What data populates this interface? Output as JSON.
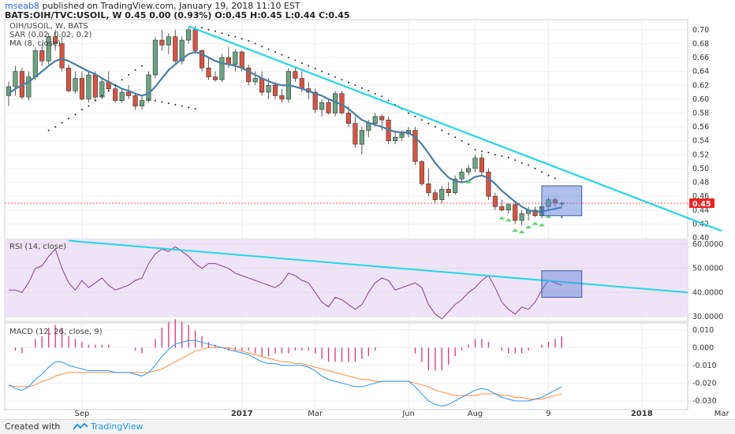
{
  "header": {
    "line1_author": "mseab8",
    "line1_rest": "published on TradingView.com, January 19, 2018 11:10 EST",
    "line2": "BATS:OIH/TVC:USOIL, W  0.45 0.00 (0.93%) O:0.45 H:0.45 L:0.44 C:0.45"
  },
  "panes": {
    "price": {
      "label1": "OIH/USOIL, W, BATS",
      "label2": "SAR (0.02, 0.02, 0.2)",
      "label3": "MA (8, close)"
    },
    "rsi": {
      "label": "RSI (14, close)"
    },
    "macd": {
      "label": "MACD (12, 26, close, 9)"
    }
  },
  "last_price": "0.45",
  "footer": {
    "created_with": "Created with",
    "brand": "TradingView"
  },
  "colors": {
    "up": "#6ba583",
    "down": "#d75442",
    "ma": "#4a7fa3",
    "trendline": "#22d7e6",
    "rsi": "#8e3c8e",
    "rsi_bg": "#efe3f8",
    "macd": "#2196f3",
    "signal": "#ff8a3d",
    "hist": "#e0307a",
    "box": "#5b7fd6",
    "price_label": "#e22"
  },
  "chart_data": [
    {
      "type": "candlestick",
      "title": "OIH/USOIL, W, BATS",
      "ylim": [
        0.4,
        0.71
      ],
      "y_ticks": [
        "0.70",
        "0.68",
        "0.66",
        "0.64",
        "0.62",
        "0.60",
        "0.58",
        "0.56",
        "0.54",
        "0.52",
        "0.50",
        "0.48",
        "0.46",
        "0.44",
        "0.42",
        "0.40"
      ],
      "x_labels": [
        "Sep",
        "2017",
        "Mar",
        "Jun",
        "Aug",
        "9",
        "2018",
        "Mar"
      ],
      "x_label_index": [
        11,
        35,
        46,
        60,
        70,
        81,
        95,
        107
      ],
      "last_price": 0.45,
      "candles": [
        [
          0.605,
          0.625,
          0.59,
          0.618
        ],
        [
          0.618,
          0.648,
          0.605,
          0.64
        ],
        [
          0.64,
          0.645,
          0.6,
          0.603
        ],
        [
          0.603,
          0.64,
          0.598,
          0.632
        ],
        [
          0.632,
          0.675,
          0.628,
          0.67
        ],
        [
          0.67,
          0.68,
          0.648,
          0.655
        ],
        [
          0.655,
          0.695,
          0.65,
          0.69
        ],
        [
          0.69,
          0.7,
          0.67,
          0.68
        ],
        [
          0.68,
          0.69,
          0.64,
          0.645
        ],
        [
          0.645,
          0.65,
          0.61,
          0.612
        ],
        [
          0.612,
          0.64,
          0.608,
          0.63
        ],
        [
          0.63,
          0.64,
          0.598,
          0.6
        ],
        [
          0.6,
          0.64,
          0.595,
          0.635
        ],
        [
          0.635,
          0.64,
          0.598,
          0.603
        ],
        [
          0.603,
          0.63,
          0.6,
          0.625
        ],
        [
          0.625,
          0.64,
          0.61,
          0.615
        ],
        [
          0.615,
          0.62,
          0.595,
          0.598
        ],
        [
          0.598,
          0.615,
          0.595,
          0.61
        ],
        [
          0.61,
          0.62,
          0.6,
          0.605
        ],
        [
          0.605,
          0.608,
          0.585,
          0.59
        ],
        [
          0.59,
          0.605,
          0.585,
          0.598
        ],
        [
          0.598,
          0.64,
          0.595,
          0.635
        ],
        [
          0.635,
          0.69,
          0.63,
          0.685
        ],
        [
          0.685,
          0.7,
          0.67,
          0.678
        ],
        [
          0.678,
          0.695,
          0.665,
          0.69
        ],
        [
          0.69,
          0.7,
          0.65,
          0.655
        ],
        [
          0.655,
          0.69,
          0.65,
          0.685
        ],
        [
          0.685,
          0.705,
          0.68,
          0.7
        ],
        [
          0.7,
          0.705,
          0.665,
          0.67
        ],
        [
          0.67,
          0.672,
          0.64,
          0.645
        ],
        [
          0.645,
          0.66,
          0.628,
          0.632
        ],
        [
          0.632,
          0.64,
          0.625,
          0.628
        ],
        [
          0.628,
          0.665,
          0.625,
          0.66
        ],
        [
          0.66,
          0.675,
          0.645,
          0.65
        ],
        [
          0.65,
          0.672,
          0.64,
          0.668
        ],
        [
          0.668,
          0.67,
          0.64,
          0.645
        ],
        [
          0.645,
          0.65,
          0.62,
          0.625
        ],
        [
          0.625,
          0.64,
          0.62,
          0.63
        ],
        [
          0.63,
          0.64,
          0.605,
          0.61
        ],
        [
          0.61,
          0.63,
          0.6,
          0.62
        ],
        [
          0.62,
          0.625,
          0.6,
          0.605
        ],
        [
          0.605,
          0.615,
          0.595,
          0.6
        ],
        [
          0.6,
          0.645,
          0.595,
          0.64
        ],
        [
          0.64,
          0.645,
          0.625,
          0.63
        ],
        [
          0.63,
          0.64,
          0.61,
          0.615
        ],
        [
          0.615,
          0.625,
          0.6,
          0.61
        ],
        [
          0.61,
          0.615,
          0.58,
          0.585
        ],
        [
          0.585,
          0.6,
          0.575,
          0.595
        ],
        [
          0.595,
          0.6,
          0.578,
          0.58
        ],
        [
          0.58,
          0.612,
          0.575,
          0.608
        ],
        [
          0.608,
          0.612,
          0.578,
          0.58
        ],
        [
          0.58,
          0.59,
          0.56,
          0.565
        ],
        [
          0.565,
          0.575,
          0.53,
          0.535
        ],
        [
          0.535,
          0.56,
          0.52,
          0.555
        ],
        [
          0.555,
          0.57,
          0.545,
          0.565
        ],
        [
          0.565,
          0.58,
          0.56,
          0.575
        ],
        [
          0.575,
          0.578,
          0.555,
          0.57
        ],
        [
          0.57,
          0.575,
          0.535,
          0.54
        ],
        [
          0.54,
          0.555,
          0.535,
          0.545
        ],
        [
          0.545,
          0.555,
          0.54,
          0.55
        ],
        [
          0.55,
          0.56,
          0.545,
          0.555
        ],
        [
          0.555,
          0.56,
          0.505,
          0.51
        ],
        [
          0.51,
          0.512,
          0.475,
          0.478
        ],
        [
          0.478,
          0.5,
          0.46,
          0.465
        ],
        [
          0.465,
          0.47,
          0.45,
          0.455
        ],
        [
          0.455,
          0.475,
          0.45,
          0.47
        ],
        [
          0.47,
          0.48,
          0.46,
          0.465
        ],
        [
          0.465,
          0.49,
          0.462,
          0.485
        ],
        [
          0.485,
          0.5,
          0.48,
          0.495
        ],
        [
          0.495,
          0.505,
          0.49,
          0.5
        ],
        [
          0.5,
          0.52,
          0.495,
          0.515
        ],
        [
          0.515,
          0.522,
          0.49,
          0.495
        ],
        [
          0.495,
          0.5,
          0.455,
          0.46
        ],
        [
          0.46,
          0.465,
          0.44,
          0.445
        ],
        [
          0.445,
          0.455,
          0.438,
          0.44
        ],
        [
          0.44,
          0.45,
          0.435,
          0.448
        ],
        [
          0.448,
          0.452,
          0.42,
          0.425
        ],
        [
          0.425,
          0.44,
          0.418,
          0.435
        ],
        [
          0.435,
          0.445,
          0.425,
          0.44
        ],
        [
          0.44,
          0.445,
          0.43,
          0.432
        ],
        [
          0.432,
          0.45,
          0.428,
          0.445
        ],
        [
          0.445,
          0.458,
          0.44,
          0.455
        ],
        [
          0.455,
          0.458,
          0.445,
          0.45
        ],
        [
          0.45,
          0.452,
          0.445,
          0.45
        ]
      ],
      "ma": [
        0.608,
        0.615,
        0.62,
        0.625,
        0.632,
        0.64,
        0.648,
        0.655,
        0.658,
        0.655,
        0.65,
        0.645,
        0.64,
        0.636,
        0.63,
        0.625,
        0.62,
        0.615,
        0.612,
        0.608,
        0.605,
        0.608,
        0.618,
        0.63,
        0.642,
        0.65,
        0.658,
        0.665,
        0.668,
        0.665,
        0.66,
        0.655,
        0.652,
        0.65,
        0.648,
        0.645,
        0.64,
        0.635,
        0.63,
        0.626,
        0.622,
        0.62,
        0.62,
        0.618,
        0.615,
        0.612,
        0.608,
        0.605,
        0.6,
        0.596,
        0.592,
        0.586,
        0.578,
        0.57,
        0.566,
        0.563,
        0.56,
        0.556,
        0.553,
        0.552,
        0.552,
        0.545,
        0.535,
        0.522,
        0.508,
        0.497,
        0.487,
        0.482,
        0.48,
        0.482,
        0.488,
        0.49,
        0.486,
        0.478,
        0.468,
        0.46,
        0.452,
        0.445,
        0.44,
        0.438,
        0.438,
        0.44,
        0.442,
        0.444
      ],
      "sar": [
        null,
        null,
        null,
        null,
        null,
        null,
        0.555,
        0.56,
        0.566,
        0.572,
        0.578,
        0.585,
        0.59,
        0.598,
        0.605,
        0.612,
        0.62,
        0.628,
        0.635,
        0.642,
        0.648,
        0.6,
        0.598,
        0.596,
        0.594,
        0.592,
        0.59,
        0.588,
        0.586,
        0.703,
        0.7,
        0.698,
        0.695,
        0.692,
        0.69,
        0.687,
        0.684,
        0.68,
        0.676,
        0.672,
        0.668,
        0.664,
        0.66,
        0.656,
        0.652,
        0.648,
        0.644,
        0.64,
        0.636,
        0.632,
        0.628,
        0.624,
        0.62,
        0.616,
        0.612,
        0.608,
        0.604,
        0.598,
        0.592,
        0.586,
        0.58,
        0.575,
        0.57,
        0.565,
        0.56,
        0.555,
        0.55,
        0.545,
        0.54,
        0.535,
        0.527,
        0.525,
        0.523,
        0.52,
        0.518,
        0.516,
        0.512,
        0.508,
        0.505,
        0.5,
        0.495,
        0.49,
        0.486,
        0.43
      ],
      "sar_up_markers": [
        69,
        74,
        75,
        76,
        77,
        78,
        79,
        80,
        81
      ],
      "trendline": {
        "from": [
          27,
          0.705
        ],
        "to": [
          107,
          0.41
        ]
      },
      "box": {
        "x": [
          80,
          86
        ],
        "y": [
          0.432,
          0.475
        ]
      }
    },
    {
      "type": "line",
      "title": "RSI (14, close)",
      "ylim": [
        28,
        62
      ],
      "y_ticks": [
        "60.0000",
        "50.0000",
        "40.0000",
        "30.0000"
      ],
      "values": [
        41,
        41,
        40,
        44,
        50,
        51,
        55,
        58,
        50,
        44,
        41,
        45,
        42,
        44,
        46,
        43,
        41,
        42,
        43,
        45,
        46,
        52,
        56,
        58,
        57,
        59,
        57,
        55,
        52,
        50,
        52,
        52,
        51,
        50,
        48,
        47,
        46,
        45,
        44,
        43,
        42,
        44,
        48,
        47,
        45,
        44,
        40,
        36,
        34,
        38,
        37,
        35,
        33,
        35,
        40,
        44,
        46,
        45,
        41,
        42,
        43,
        44,
        42,
        35,
        31,
        29,
        32,
        35,
        37,
        40,
        42,
        45,
        47,
        42,
        36,
        33,
        31,
        34,
        33,
        36,
        41,
        45,
        44,
        43
      ],
      "trendline": {
        "from": [
          9,
          61.5
        ],
        "to": [
          107,
          40
        ]
      },
      "box": {
        "x": [
          80,
          86
        ],
        "y": [
          38,
          49
        ]
      }
    },
    {
      "type": "line",
      "title": "MACD (12, 26, close, 9)",
      "ylim": [
        -0.034,
        0.013
      ],
      "y_ticks": [
        "0.010",
        "0.000",
        "-0.010",
        "-0.020",
        "-0.030"
      ],
      "macd": [
        -0.021,
        -0.023,
        -0.024,
        -0.022,
        -0.018,
        -0.015,
        -0.011,
        -0.008,
        -0.008,
        -0.01,
        -0.011,
        -0.012,
        -0.013,
        -0.013,
        -0.013,
        -0.013,
        -0.014,
        -0.014,
        -0.014,
        -0.015,
        -0.016,
        -0.014,
        -0.01,
        -0.005,
        -0.001,
        0.002,
        0.003,
        0.004,
        0.004,
        0.003,
        0.002,
        0.001,
        0.0,
        -0.001,
        -0.002,
        -0.003,
        -0.004,
        -0.006,
        -0.008,
        -0.009,
        -0.009,
        -0.01,
        -0.01,
        -0.01,
        -0.01,
        -0.011,
        -0.013,
        -0.016,
        -0.018,
        -0.019,
        -0.02,
        -0.021,
        -0.022,
        -0.022,
        -0.021,
        -0.02,
        -0.019,
        -0.019,
        -0.019,
        -0.019,
        -0.019,
        -0.022,
        -0.026,
        -0.03,
        -0.032,
        -0.033,
        -0.032,
        -0.03,
        -0.028,
        -0.026,
        -0.024,
        -0.023,
        -0.024,
        -0.026,
        -0.028,
        -0.029,
        -0.03,
        -0.03,
        -0.03,
        -0.029,
        -0.028,
        -0.026,
        -0.024,
        -0.022
      ],
      "signal": [
        -0.021,
        -0.022,
        -0.022,
        -0.022,
        -0.021,
        -0.019,
        -0.018,
        -0.016,
        -0.015,
        -0.014,
        -0.014,
        -0.014,
        -0.014,
        -0.014,
        -0.014,
        -0.014,
        -0.014,
        -0.014,
        -0.014,
        -0.014,
        -0.014,
        -0.014,
        -0.013,
        -0.012,
        -0.01,
        -0.008,
        -0.006,
        -0.004,
        -0.002,
        -0.001,
        0.0,
        0.0,
        0.0,
        0.0,
        -0.001,
        -0.002,
        -0.003,
        -0.004,
        -0.005,
        -0.006,
        -0.007,
        -0.008,
        -0.008,
        -0.009,
        -0.009,
        -0.01,
        -0.011,
        -0.012,
        -0.013,
        -0.014,
        -0.015,
        -0.016,
        -0.017,
        -0.018,
        -0.018,
        -0.019,
        -0.019,
        -0.019,
        -0.019,
        -0.019,
        -0.019,
        -0.02,
        -0.021,
        -0.022,
        -0.024,
        -0.025,
        -0.026,
        -0.027,
        -0.027,
        -0.027,
        -0.027,
        -0.026,
        -0.026,
        -0.026,
        -0.027,
        -0.027,
        -0.028,
        -0.028,
        -0.029,
        -0.029,
        -0.029,
        -0.028,
        -0.027,
        -0.026
      ],
      "hist_scale": 1.6
    }
  ]
}
